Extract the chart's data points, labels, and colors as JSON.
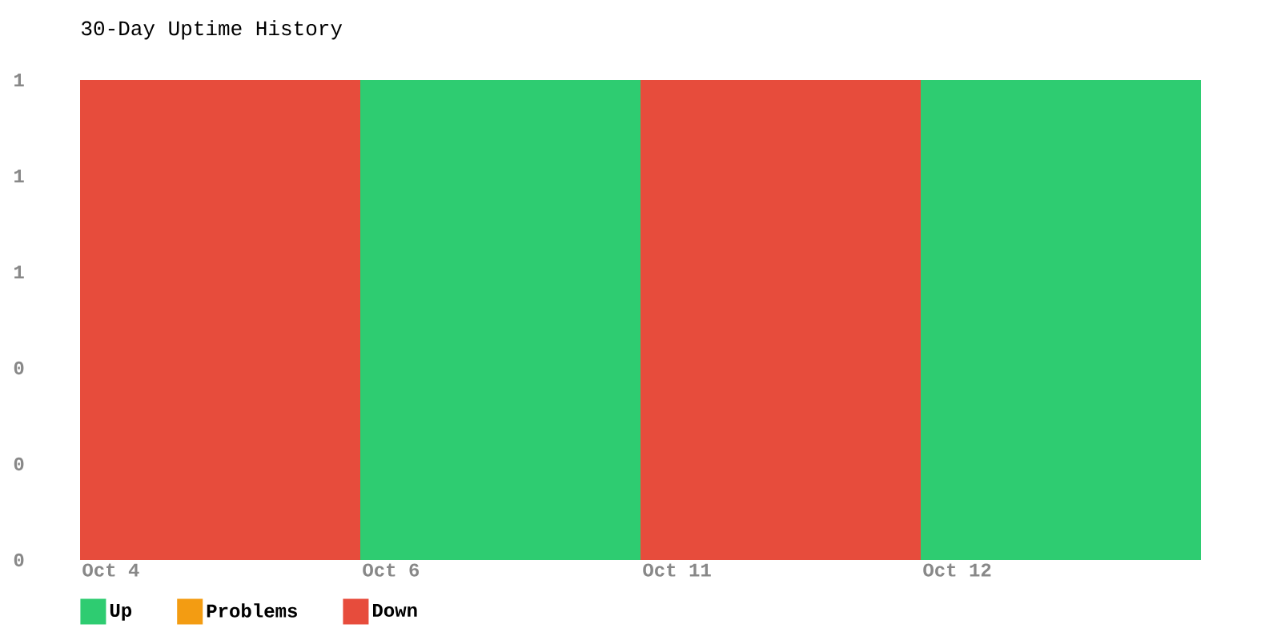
{
  "chart_data": {
    "type": "bar",
    "title": "30-Day Uptime History",
    "categories": [
      "Oct 4",
      "Oct 6",
      "Oct 11",
      "Oct 12"
    ],
    "stacked": true,
    "series": [
      {
        "name": "Up",
        "color": "#2ecc71",
        "values": [
          0,
          1,
          0,
          1
        ]
      },
      {
        "name": "Problems",
        "color": "#f39c12",
        "values": [
          0,
          0,
          0,
          0
        ]
      },
      {
        "name": "Down",
        "color": "#e74c3c",
        "values": [
          1,
          0,
          1,
          0
        ]
      }
    ],
    "ylim": [
      0,
      1
    ],
    "yticks": [
      0,
      {
        "value": 0.2,
        "label": "0"
      },
      {
        "value": 0.4,
        "label": "0"
      },
      {
        "value": 0.6,
        "label": "1"
      },
      {
        "value": 0.8,
        "label": "1"
      },
      1
    ],
    "legend": "bottom left"
  }
}
